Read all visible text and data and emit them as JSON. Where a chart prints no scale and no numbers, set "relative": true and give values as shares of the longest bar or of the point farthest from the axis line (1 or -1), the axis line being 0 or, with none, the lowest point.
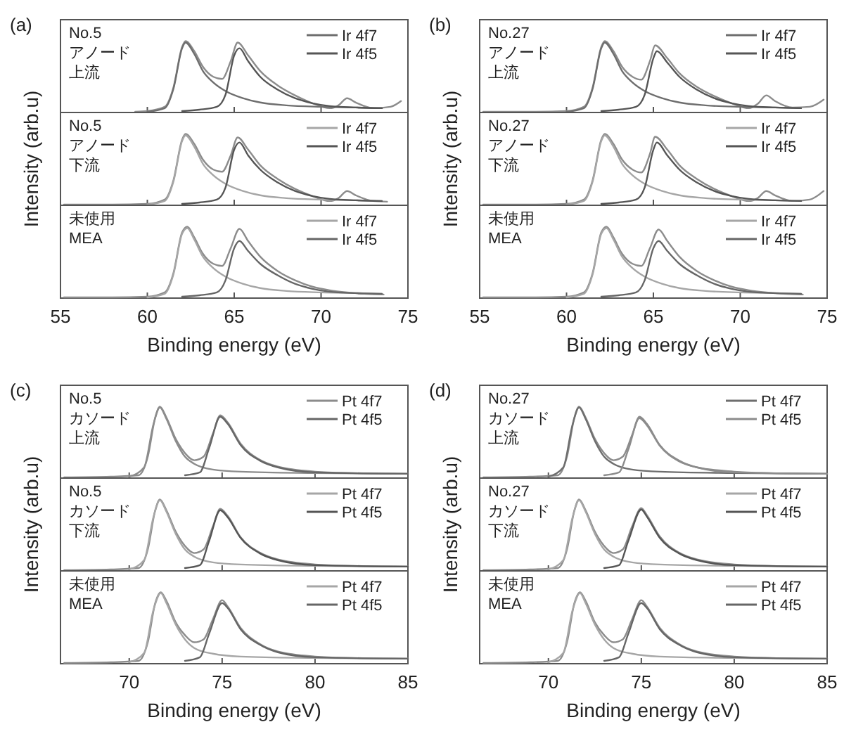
{
  "chart_data": [
    {
      "type": "line",
      "relative": true,
      "title": "(a)",
      "annotations": [
        "No.5",
        "アノード",
        "上流"
      ],
      "xlim": [
        55,
        75
      ],
      "xticks": [
        55,
        60,
        65,
        70,
        75
      ],
      "tick_labels": false,
      "legend": "top right",
      "series": [
        {
          "color": "#8c8c8c",
          "x": [
            59.3,
            60,
            61,
            61.5,
            62,
            62.2,
            62.7,
            63.2,
            63.8,
            64.3,
            64.8,
            65.2,
            65.8,
            66.5,
            67.5,
            68.5,
            69.5,
            70.5,
            71,
            71.5,
            72,
            73,
            74,
            74.6
          ],
          "values": [
            0.01,
            0.02,
            0.08,
            0.35,
            0.92,
            1,
            0.86,
            0.64,
            0.5,
            0.47,
            0.72,
            0.98,
            0.8,
            0.58,
            0.38,
            0.24,
            0.13,
            0.06,
            0.1,
            0.2,
            0.14,
            0.06,
            0.08,
            0.16
          ]
        },
        {
          "name": "Ir 4f7",
          "color": "#6e6e6e",
          "x": [
            60,
            61,
            61.5,
            62,
            62.2,
            62.7,
            63.2,
            63.8,
            64.5,
            65.5,
            66.5,
            68,
            70,
            72,
            73.5
          ],
          "values": [
            0.01,
            0.06,
            0.33,
            0.9,
            0.98,
            0.82,
            0.58,
            0.42,
            0.3,
            0.2,
            0.14,
            0.1,
            0.08,
            0.07,
            0.06
          ]
        },
        {
          "name": "Ir 4f5",
          "color": "#555555",
          "x": [
            62,
            63,
            64,
            64.5,
            65,
            65.3,
            65.8,
            66.5,
            67.5,
            68.5,
            69.5,
            70.5,
            72,
            73.5
          ],
          "values": [
            0.02,
            0.04,
            0.08,
            0.25,
            0.8,
            0.9,
            0.72,
            0.5,
            0.32,
            0.2,
            0.13,
            0.09,
            0.07,
            0.06
          ]
        }
      ]
    },
    {
      "type": "line",
      "relative": true,
      "ylabel": "Intensity (arb.u)",
      "annotations": [
        "No.5",
        "アノード",
        "下流"
      ],
      "xlim": [
        55,
        75
      ],
      "xticks": [
        55,
        60,
        65,
        70,
        75
      ],
      "tick_labels": false,
      "legend": "top right",
      "series": [
        {
          "color": "#8c8c8c",
          "x": [
            55.2,
            58,
            60,
            61,
            61.5,
            62,
            62.2,
            62.7,
            63.2,
            63.8,
            64.3,
            64.8,
            65.2,
            65.8,
            66.5,
            67.5,
            68.5,
            69.5,
            70.5,
            71,
            71.5,
            72,
            73,
            73.8
          ],
          "values": [
            0.01,
            0.01,
            0.02,
            0.08,
            0.35,
            0.92,
            1,
            0.86,
            0.64,
            0.5,
            0.47,
            0.7,
            0.95,
            0.78,
            0.56,
            0.37,
            0.23,
            0.13,
            0.06,
            0.1,
            0.2,
            0.14,
            0.06,
            0.05
          ]
        },
        {
          "name": "Ir 4f7",
          "color": "#a6a6a6",
          "x": [
            60,
            61,
            61.5,
            62,
            62.2,
            62.7,
            63.2,
            63.8,
            64.5,
            65.5,
            66.5,
            68,
            70,
            72,
            73.5
          ],
          "values": [
            0.01,
            0.06,
            0.33,
            0.9,
            0.98,
            0.82,
            0.58,
            0.42,
            0.3,
            0.2,
            0.14,
            0.1,
            0.08,
            0.07,
            0.06
          ]
        },
        {
          "name": "Ir 4f5",
          "color": "#555555",
          "x": [
            62,
            63,
            64,
            64.5,
            65,
            65.3,
            65.8,
            66.5,
            67.5,
            68.5,
            69.5,
            70.5,
            72,
            73.5
          ],
          "values": [
            0.02,
            0.04,
            0.08,
            0.25,
            0.78,
            0.88,
            0.7,
            0.5,
            0.32,
            0.2,
            0.13,
            0.09,
            0.07,
            0.06
          ]
        }
      ]
    },
    {
      "type": "line",
      "relative": true,
      "xlabel": "Binding energy (eV)",
      "annotations": [
        "未使用",
        "MEA"
      ],
      "xlim": [
        55,
        75
      ],
      "xticks": [
        55,
        60,
        65,
        70,
        75
      ],
      "tick_labels": "x",
      "legend": "top right",
      "series": [
        {
          "color": "#8c8c8c",
          "x": [
            55.2,
            58,
            60,
            61,
            61.5,
            62,
            62.3,
            62.7,
            63.2,
            63.8,
            64.3,
            64.8,
            65.3,
            65.8,
            66.5,
            67.5,
            68.5,
            69.5,
            70.5,
            71.5,
            72.5,
            73.6
          ],
          "values": [
            0.01,
            0.01,
            0.02,
            0.08,
            0.35,
            0.92,
            1,
            0.85,
            0.62,
            0.48,
            0.45,
            0.7,
            0.97,
            0.8,
            0.58,
            0.38,
            0.25,
            0.16,
            0.11,
            0.08,
            0.06,
            0.05
          ]
        },
        {
          "name": "Ir 4f7",
          "color": "#a6a6a6",
          "x": [
            60,
            61,
            61.5,
            62,
            62.3,
            62.7,
            63.2,
            63.8,
            64.5,
            65.5,
            66.5,
            68,
            70,
            72,
            73.5
          ],
          "values": [
            0.01,
            0.06,
            0.33,
            0.9,
            0.98,
            0.82,
            0.58,
            0.42,
            0.3,
            0.2,
            0.14,
            0.1,
            0.08,
            0.07,
            0.06
          ]
        },
        {
          "name": "Ir 4f5",
          "color": "#666666",
          "x": [
            62,
            63,
            64,
            64.5,
            65,
            65.3,
            65.8,
            66.5,
            67.5,
            68.5,
            69.5,
            70.5,
            72,
            73.5
          ],
          "values": [
            0.02,
            0.04,
            0.08,
            0.25,
            0.7,
            0.8,
            0.66,
            0.48,
            0.32,
            0.2,
            0.13,
            0.09,
            0.07,
            0.06
          ]
        }
      ]
    },
    {
      "type": "line",
      "relative": true,
      "title": "(b)",
      "annotations": [
        "No.27",
        "アノード",
        "上流"
      ],
      "xlim": [
        55,
        75
      ],
      "xticks": [
        55,
        60,
        65,
        70,
        75
      ],
      "tick_labels": false,
      "legend": "top right",
      "series": [
        {
          "color": "#8c8c8c",
          "x": [
            55.2,
            58,
            60,
            61,
            61.5,
            62,
            62.2,
            62.7,
            63.2,
            63.8,
            64.3,
            64.8,
            65.1,
            65.8,
            66.5,
            67.5,
            68.5,
            69.5,
            70.5,
            71,
            71.5,
            72,
            73,
            74,
            74.8
          ],
          "values": [
            0.01,
            0.01,
            0.02,
            0.08,
            0.35,
            0.92,
            1,
            0.86,
            0.64,
            0.5,
            0.46,
            0.72,
            0.94,
            0.76,
            0.55,
            0.36,
            0.23,
            0.13,
            0.06,
            0.12,
            0.24,
            0.16,
            0.07,
            0.08,
            0.18
          ]
        },
        {
          "name": "Ir 4f7",
          "color": "#6e6e6e",
          "x": [
            60,
            61,
            61.5,
            62,
            62.2,
            62.7,
            63.2,
            63.8,
            64.5,
            65.5,
            66.5,
            68,
            70,
            72,
            73.5
          ],
          "values": [
            0.01,
            0.06,
            0.33,
            0.9,
            0.98,
            0.82,
            0.58,
            0.42,
            0.3,
            0.2,
            0.14,
            0.1,
            0.08,
            0.07,
            0.06
          ]
        },
        {
          "name": "Ir 4f5",
          "color": "#555555",
          "x": [
            62,
            63,
            64,
            64.5,
            65,
            65.2,
            65.8,
            66.5,
            67.5,
            68.5,
            69.5,
            70.5,
            72,
            73.5
          ],
          "values": [
            0.02,
            0.04,
            0.08,
            0.25,
            0.76,
            0.86,
            0.7,
            0.5,
            0.32,
            0.2,
            0.13,
            0.09,
            0.07,
            0.06
          ]
        }
      ]
    },
    {
      "type": "line",
      "relative": true,
      "ylabel": "Intensity (arb.u)",
      "annotations": [
        "No.27",
        "アノード",
        "下流"
      ],
      "xlim": [
        55,
        75
      ],
      "xticks": [
        55,
        60,
        65,
        70,
        75
      ],
      "tick_labels": false,
      "legend": "top right",
      "series": [
        {
          "color": "#8c8c8c",
          "x": [
            55.2,
            58,
            60,
            61,
            61.5,
            62,
            62.2,
            62.7,
            63.2,
            63.8,
            64.3,
            64.8,
            65.1,
            65.8,
            66.5,
            67.5,
            68.5,
            69.5,
            70.5,
            71,
            71.5,
            72,
            73,
            74,
            74.8
          ],
          "values": [
            0.01,
            0.01,
            0.02,
            0.08,
            0.35,
            0.92,
            1,
            0.86,
            0.64,
            0.5,
            0.46,
            0.72,
            0.96,
            0.78,
            0.56,
            0.37,
            0.23,
            0.13,
            0.06,
            0.1,
            0.2,
            0.14,
            0.06,
            0.08,
            0.2
          ]
        },
        {
          "name": "Ir 4f7",
          "color": "#a6a6a6",
          "x": [
            60,
            61,
            61.5,
            62,
            62.2,
            62.7,
            63.2,
            63.8,
            64.5,
            65.5,
            66.5,
            68,
            70,
            72,
            73.5
          ],
          "values": [
            0.01,
            0.06,
            0.33,
            0.9,
            0.98,
            0.82,
            0.58,
            0.42,
            0.3,
            0.2,
            0.14,
            0.1,
            0.08,
            0.07,
            0.06
          ]
        },
        {
          "name": "Ir 4f5",
          "color": "#555555",
          "x": [
            62,
            63,
            64,
            64.5,
            65,
            65.2,
            65.8,
            66.5,
            67.5,
            68.5,
            69.5,
            70.5,
            72,
            73.5
          ],
          "values": [
            0.02,
            0.04,
            0.08,
            0.25,
            0.78,
            0.88,
            0.7,
            0.5,
            0.32,
            0.2,
            0.13,
            0.09,
            0.07,
            0.06
          ]
        }
      ]
    },
    {
      "type": "line",
      "relative": true,
      "xlabel": "Binding energy (eV)",
      "annotations": [
        "未使用",
        "MEA"
      ],
      "xlim": [
        55,
        75
      ],
      "xticks": [
        55,
        60,
        65,
        70,
        75
      ],
      "tick_labels": "x",
      "legend": "top right",
      "series": [
        {
          "color": "#8c8c8c",
          "x": [
            55.2,
            58,
            60,
            61,
            61.5,
            62,
            62.3,
            62.7,
            63.2,
            63.8,
            64.3,
            64.8,
            65.3,
            65.8,
            66.5,
            67.5,
            68.5,
            69.5,
            70.5,
            71.5,
            72.5,
            73.6
          ],
          "values": [
            0.01,
            0.01,
            0.02,
            0.08,
            0.35,
            0.92,
            1,
            0.85,
            0.62,
            0.48,
            0.45,
            0.7,
            0.96,
            0.8,
            0.58,
            0.38,
            0.25,
            0.16,
            0.11,
            0.08,
            0.06,
            0.05
          ]
        },
        {
          "name": "Ir 4f7",
          "color": "#a6a6a6",
          "x": [
            60,
            61,
            61.5,
            62,
            62.3,
            62.7,
            63.2,
            63.8,
            64.5,
            65.5,
            66.5,
            68,
            70,
            72,
            73.5
          ],
          "values": [
            0.01,
            0.06,
            0.33,
            0.9,
            0.98,
            0.82,
            0.58,
            0.42,
            0.3,
            0.2,
            0.14,
            0.1,
            0.08,
            0.07,
            0.06
          ]
        },
        {
          "name": "Ir 4f5",
          "color": "#666666",
          "x": [
            62,
            63,
            64,
            64.5,
            65,
            65.3,
            65.8,
            66.5,
            67.5,
            68.5,
            69.5,
            70.5,
            72,
            73.5
          ],
          "values": [
            0.02,
            0.04,
            0.08,
            0.25,
            0.7,
            0.8,
            0.66,
            0.48,
            0.32,
            0.2,
            0.13,
            0.09,
            0.07,
            0.06
          ]
        }
      ]
    },
    {
      "type": "line",
      "relative": true,
      "title": "(c)",
      "annotations": [
        "No.5",
        "カソード",
        "上流"
      ],
      "xlim": [
        66.3,
        85
      ],
      "xticks": [
        70,
        75,
        80,
        85
      ],
      "tick_labels": false,
      "legend": "top right",
      "series": [
        {
          "color": "#8c8c8c",
          "x": [
            66.5,
            69,
            70.5,
            71,
            71.4,
            71.65,
            72,
            72.5,
            73,
            73.5,
            74,
            74.5,
            74.9,
            75.3,
            76,
            77,
            78,
            80,
            82,
            85
          ],
          "values": [
            0.01,
            0.02,
            0.04,
            0.3,
            0.85,
            1,
            0.85,
            0.55,
            0.35,
            0.25,
            0.3,
            0.62,
            0.88,
            0.78,
            0.48,
            0.26,
            0.16,
            0.09,
            0.07,
            0.06
          ]
        },
        {
          "name": "Pt 4f7",
          "color": "#8c8c8c",
          "x": [
            70,
            70.8,
            71.3,
            71.65,
            72,
            72.5,
            73,
            73.5,
            74.5,
            76,
            80,
            85
          ],
          "values": [
            0.02,
            0.15,
            0.75,
            0.99,
            0.83,
            0.52,
            0.3,
            0.2,
            0.12,
            0.09,
            0.07,
            0.06
          ]
        },
        {
          "name": "Pt 4f5",
          "color": "#666666",
          "x": [
            73,
            73.8,
            74.3,
            74.9,
            75.3,
            76,
            77,
            78,
            80,
            85
          ],
          "values": [
            0.04,
            0.08,
            0.42,
            0.86,
            0.76,
            0.46,
            0.25,
            0.15,
            0.08,
            0.06
          ]
        }
      ]
    },
    {
      "type": "line",
      "relative": true,
      "ylabel": "Intensity (arb.u)",
      "annotations": [
        "No.5",
        "カソード",
        "下流"
      ],
      "xlim": [
        66.3,
        85
      ],
      "xticks": [
        70,
        75,
        80,
        85
      ],
      "tick_labels": false,
      "legend": "top right",
      "series": [
        {
          "color": "#8c8c8c",
          "x": [
            66.5,
            69,
            70.5,
            71,
            71.4,
            71.65,
            72,
            72.5,
            73,
            73.5,
            74,
            74.5,
            74.9,
            75.3,
            76,
            77,
            78,
            80,
            82,
            85
          ],
          "values": [
            0.01,
            0.02,
            0.04,
            0.3,
            0.85,
            1,
            0.85,
            0.55,
            0.35,
            0.25,
            0.3,
            0.62,
            0.87,
            0.77,
            0.47,
            0.26,
            0.16,
            0.09,
            0.07,
            0.06
          ]
        },
        {
          "name": "Pt 4f7",
          "color": "#a6a6a6",
          "x": [
            70,
            70.8,
            71.3,
            71.65,
            72,
            72.5,
            73,
            73.5,
            74.5,
            76,
            80,
            85
          ],
          "values": [
            0.02,
            0.15,
            0.75,
            0.99,
            0.83,
            0.52,
            0.3,
            0.2,
            0.12,
            0.09,
            0.07,
            0.06
          ]
        },
        {
          "name": "Pt 4f5",
          "color": "#555555",
          "x": [
            73,
            73.8,
            74.3,
            74.9,
            75.3,
            76,
            77,
            78,
            80,
            85
          ],
          "values": [
            0.04,
            0.08,
            0.42,
            0.85,
            0.75,
            0.46,
            0.25,
            0.15,
            0.08,
            0.06
          ]
        }
      ]
    },
    {
      "type": "line",
      "relative": true,
      "xlabel": "Binding energy (eV)",
      "annotations": [
        "未使用",
        "MEA"
      ],
      "xlim": [
        66.3,
        85
      ],
      "xticks": [
        70,
        75,
        80,
        85
      ],
      "tick_labels": "x",
      "legend": "top right",
      "series": [
        {
          "color": "#8c8c8c",
          "x": [
            66.5,
            69,
            70.5,
            71,
            71.4,
            71.7,
            72,
            72.5,
            73,
            73.5,
            74,
            74.5,
            75,
            75.3,
            76,
            77,
            78,
            80,
            82,
            85
          ],
          "values": [
            0.01,
            0.02,
            0.04,
            0.3,
            0.85,
            1,
            0.88,
            0.58,
            0.4,
            0.3,
            0.34,
            0.62,
            0.89,
            0.8,
            0.5,
            0.28,
            0.17,
            0.1,
            0.08,
            0.07
          ]
        },
        {
          "name": "Pt 4f7",
          "color": "#a6a6a6",
          "x": [
            70,
            70.8,
            71.3,
            71.7,
            72,
            72.5,
            73,
            73.5,
            74.5,
            76,
            80,
            85
          ],
          "values": [
            0.02,
            0.15,
            0.75,
            0.99,
            0.85,
            0.55,
            0.34,
            0.22,
            0.14,
            0.1,
            0.08,
            0.07
          ]
        },
        {
          "name": "Pt 4f5",
          "color": "#666666",
          "x": [
            73,
            73.8,
            74.3,
            75,
            75.3,
            76,
            77,
            78,
            80,
            85
          ],
          "values": [
            0.04,
            0.09,
            0.42,
            0.85,
            0.78,
            0.48,
            0.27,
            0.16,
            0.09,
            0.07
          ]
        }
      ]
    },
    {
      "type": "line",
      "relative": true,
      "title": "(d)",
      "annotations": [
        "No.27",
        "カソード",
        "上流"
      ],
      "xlim": [
        66.3,
        85
      ],
      "xticks": [
        70,
        75,
        80,
        85
      ],
      "tick_labels": false,
      "legend": "top right",
      "series": [
        {
          "color": "#8c8c8c",
          "x": [
            66.5,
            69,
            70.5,
            71,
            71.4,
            71.65,
            72,
            72.5,
            73,
            73.5,
            74,
            74.5,
            74.9,
            75.3,
            76,
            77,
            78,
            80,
            82,
            85
          ],
          "values": [
            0.01,
            0.02,
            0.04,
            0.3,
            0.85,
            1,
            0.85,
            0.55,
            0.35,
            0.25,
            0.3,
            0.6,
            0.86,
            0.76,
            0.46,
            0.25,
            0.15,
            0.09,
            0.07,
            0.06
          ]
        },
        {
          "name": "Pt 4f7",
          "color": "#6e6e6e",
          "x": [
            70,
            70.8,
            71.3,
            71.65,
            72,
            72.5,
            73,
            73.5,
            74.5,
            76,
            80,
            85
          ],
          "values": [
            0.02,
            0.15,
            0.75,
            0.99,
            0.83,
            0.52,
            0.3,
            0.2,
            0.12,
            0.09,
            0.07,
            0.06
          ]
        },
        {
          "name": "Pt 4f5",
          "color": "#8c8c8c",
          "x": [
            73,
            73.8,
            74.3,
            74.9,
            75.3,
            76,
            77,
            78,
            80,
            85
          ],
          "values": [
            0.04,
            0.08,
            0.4,
            0.84,
            0.74,
            0.45,
            0.24,
            0.15,
            0.08,
            0.06
          ]
        }
      ]
    },
    {
      "type": "line",
      "relative": true,
      "ylabel": "Intensity (arb.u)",
      "annotations": [
        "No.27",
        "カソード",
        "下流"
      ],
      "xlim": [
        66.3,
        85
      ],
      "xticks": [
        70,
        75,
        80,
        85
      ],
      "tick_labels": false,
      "legend": "top right",
      "series": [
        {
          "color": "#8c8c8c",
          "x": [
            66.5,
            69,
            70.5,
            71,
            71.4,
            71.65,
            72,
            72.5,
            73,
            73.5,
            74,
            74.5,
            75,
            75.3,
            76,
            77,
            78,
            80,
            82,
            85
          ],
          "values": [
            0.01,
            0.02,
            0.04,
            0.3,
            0.85,
            1,
            0.85,
            0.55,
            0.35,
            0.25,
            0.3,
            0.62,
            0.88,
            0.78,
            0.48,
            0.26,
            0.16,
            0.09,
            0.07,
            0.06
          ]
        },
        {
          "name": "Pt 4f7",
          "color": "#a6a6a6",
          "x": [
            70,
            70.8,
            71.3,
            71.65,
            72,
            72.5,
            73,
            73.5,
            74.5,
            76,
            80,
            85
          ],
          "values": [
            0.02,
            0.15,
            0.75,
            0.99,
            0.83,
            0.52,
            0.3,
            0.2,
            0.12,
            0.09,
            0.07,
            0.06
          ]
        },
        {
          "name": "Pt 4f5",
          "color": "#555555",
          "x": [
            73,
            73.8,
            74.3,
            75,
            75.3,
            76,
            77,
            78,
            80,
            85
          ],
          "values": [
            0.04,
            0.08,
            0.42,
            0.86,
            0.76,
            0.46,
            0.25,
            0.15,
            0.08,
            0.06
          ]
        }
      ]
    },
    {
      "type": "line",
      "relative": true,
      "xlabel": "Binding energy (eV)",
      "annotations": [
        "未使用",
        "MEA"
      ],
      "xlim": [
        66.3,
        85
      ],
      "xticks": [
        70,
        75,
        80,
        85
      ],
      "tick_labels": "x",
      "legend": "top right",
      "series": [
        {
          "color": "#8c8c8c",
          "x": [
            66.5,
            69,
            70.5,
            71,
            71.4,
            71.7,
            72,
            72.5,
            73,
            73.5,
            74,
            74.5,
            75,
            75.3,
            76,
            77,
            78,
            80,
            82,
            85
          ],
          "values": [
            0.01,
            0.02,
            0.04,
            0.3,
            0.85,
            1,
            0.88,
            0.58,
            0.4,
            0.3,
            0.34,
            0.62,
            0.89,
            0.8,
            0.5,
            0.28,
            0.17,
            0.1,
            0.08,
            0.07
          ]
        },
        {
          "name": "Pt 4f7",
          "color": "#a6a6a6",
          "x": [
            70,
            70.8,
            71.3,
            71.7,
            72,
            72.5,
            73,
            73.5,
            74.5,
            76,
            80,
            85
          ],
          "values": [
            0.02,
            0.15,
            0.75,
            0.99,
            0.85,
            0.55,
            0.34,
            0.22,
            0.14,
            0.1,
            0.08,
            0.07
          ]
        },
        {
          "name": "Pt 4f5",
          "color": "#666666",
          "x": [
            73,
            73.8,
            74.3,
            75,
            75.3,
            76,
            77,
            78,
            80,
            85
          ],
          "values": [
            0.04,
            0.09,
            0.42,
            0.85,
            0.78,
            0.48,
            0.27,
            0.16,
            0.09,
            0.07
          ]
        }
      ]
    }
  ]
}
